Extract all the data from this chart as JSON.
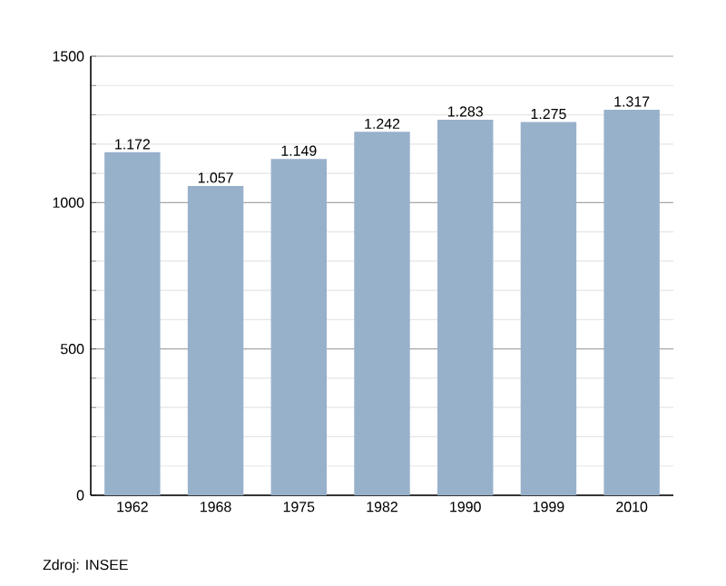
{
  "chart_data": {
    "type": "bar",
    "categories": [
      "1962",
      "1968",
      "1975",
      "1982",
      "1990",
      "1999",
      "2010"
    ],
    "values": [
      1172,
      1057,
      1149,
      1242,
      1283,
      1275,
      1317
    ],
    "value_labels": [
      "1.172",
      "1.057",
      "1.149",
      "1.242",
      "1.283",
      "1.275",
      "1.317"
    ],
    "color": "#98b1cb",
    "ylim": [
      0,
      1500
    ],
    "yticks": [
      0,
      500,
      1000,
      1500
    ],
    "grid": "y",
    "annotations": [
      "Zdroj: INSEE"
    ]
  }
}
